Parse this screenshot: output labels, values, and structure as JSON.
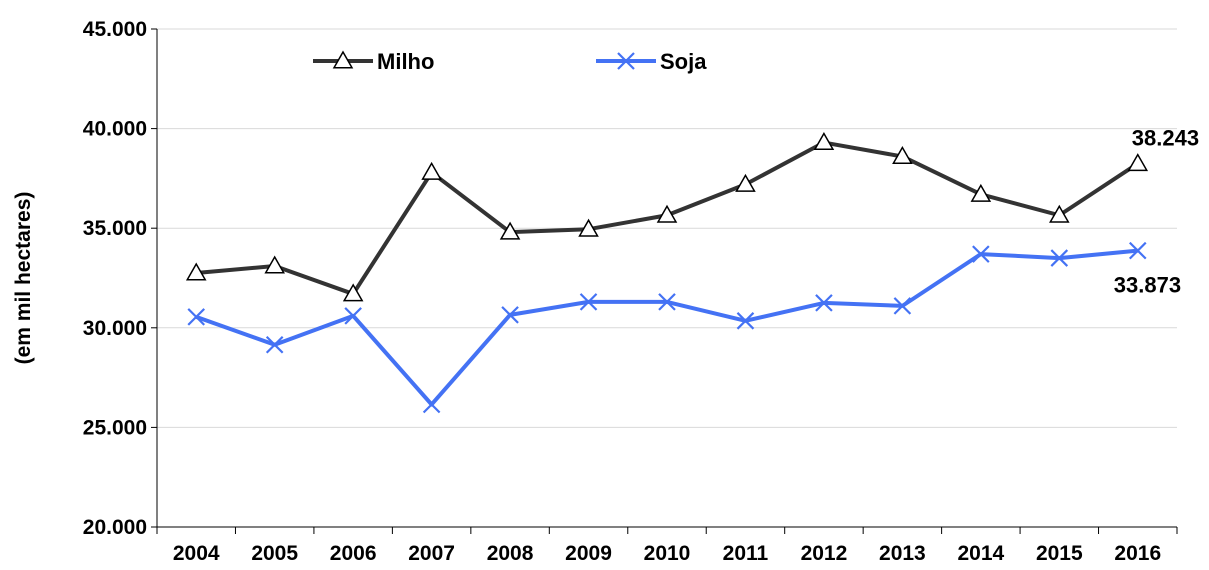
{
  "chart_data": {
    "type": "line",
    "title": "",
    "xlabel": "",
    "ylabel": "(em mil hectares)",
    "categories": [
      "2004",
      "2005",
      "2006",
      "2007",
      "2008",
      "2009",
      "2010",
      "2011",
      "2012",
      "2013",
      "2014",
      "2015",
      "2016"
    ],
    "ylim": [
      20000,
      45000
    ],
    "yticks": [
      20000,
      25000,
      30000,
      35000,
      40000,
      45000
    ],
    "ytick_labels": [
      "20.000",
      "25.000",
      "30.000",
      "35.000",
      "40.000",
      "45.000"
    ],
    "grid": true,
    "legend_position": "top-left",
    "series": [
      {
        "name": "Milho",
        "color": "#333333",
        "marker": "triangle",
        "values": [
          32750,
          33100,
          31700,
          37800,
          34800,
          34950,
          35650,
          37200,
          39300,
          38600,
          36700,
          35650,
          38243
        ],
        "end_label": "38.243"
      },
      {
        "name": "Soja",
        "color": "#4472f4",
        "marker": "x",
        "values": [
          30550,
          29150,
          30600,
          26150,
          30650,
          31300,
          31300,
          30350,
          31250,
          31100,
          33700,
          33500,
          33873
        ],
        "end_label": "33.873"
      }
    ]
  }
}
